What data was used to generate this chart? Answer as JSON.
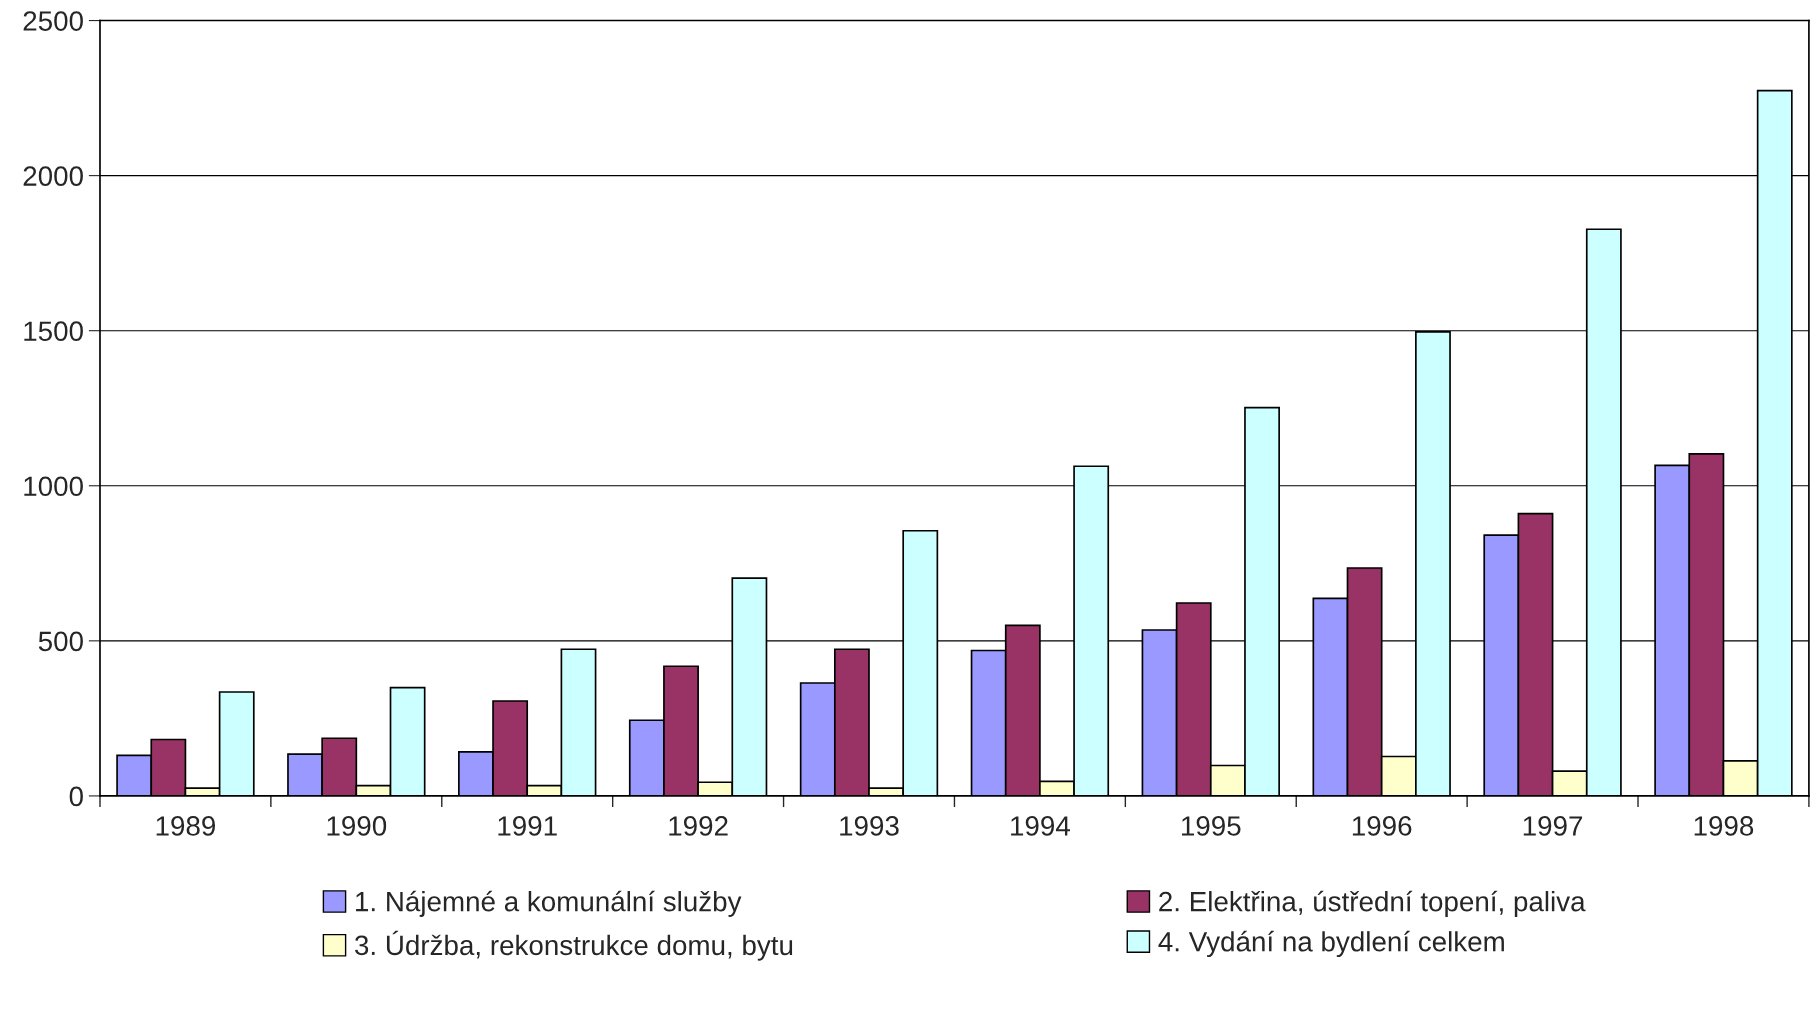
{
  "chart_data": {
    "type": "bar",
    "categories": [
      "1989",
      "1990",
      "1991",
      "1992",
      "1993",
      "1994",
      "1995",
      "1996",
      "1997",
      "1998"
    ],
    "series": [
      {
        "name": "1. Nájemné a komunální služby",
        "color": "#9999ff",
        "values": [
          131,
          135,
          142,
          244,
          364,
          469,
          535,
          637,
          841,
          1066
        ]
      },
      {
        "name": "2. Elektřina, ústřední topení, paliva",
        "color": "#993366",
        "values": [
          182,
          186,
          306,
          418,
          473,
          550,
          622,
          735,
          910,
          1103
        ]
      },
      {
        "name": "3. Údržba, rekonstrukce domu, bytu",
        "color": "#ffffcc",
        "values": [
          25,
          33,
          33,
          44,
          25,
          47,
          98,
          127,
          80,
          113
        ]
      },
      {
        "name": "4. Vydání na bydlení celkem",
        "color": "#ccffff",
        "values": [
          335,
          349,
          473,
          702,
          855,
          1063,
          1252,
          1496,
          1827,
          2274
        ]
      }
    ],
    "ylim": [
      0,
      2500
    ],
    "yticks": [
      0,
      500,
      1000,
      1500,
      2000,
      2500
    ],
    "grid": "y",
    "legend": "bottom"
  }
}
